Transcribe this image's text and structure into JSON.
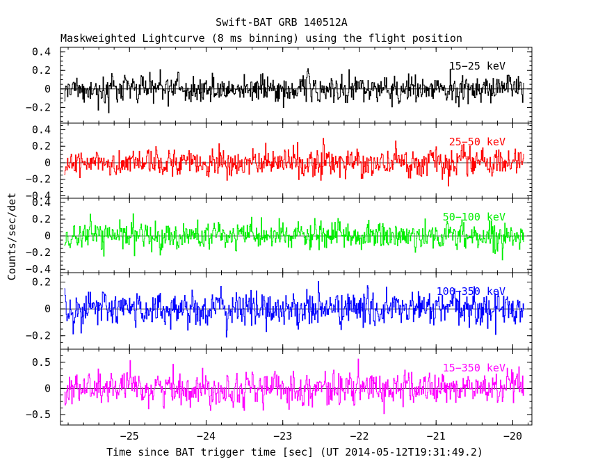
{
  "chart_data": {
    "type": "line",
    "title": "Swift-BAT GRB 140512A",
    "subtitle": "Maskweighted Lightcurve (8 ms binning) using the flight position",
    "xlabel": "Time since BAT trigger time [sec] (UT 2014-05-12T19:31:49.2)",
    "ylabel": "Counts/sec/det",
    "xlim": [
      -25.9,
      -19.75
    ],
    "data_xrange": [
      -25.85,
      -19.85
    ],
    "bin_width_sec": 0.008,
    "x_ticks": [
      -25,
      -24,
      -23,
      -22,
      -21,
      -20
    ],
    "x_tick_labels": [
      "−25",
      "−24",
      "−23",
      "−22",
      "−21",
      "−20"
    ],
    "panels": [
      {
        "name": "15-25 keV",
        "label": "15−25 keV",
        "color": "#000000",
        "ylim": [
          -0.37,
          0.45
        ],
        "y_ticks": [
          0.4,
          0.2,
          0,
          -0.2
        ],
        "y_tick_labels": [
          "0.4",
          "0.2",
          "0",
          "−0.2"
        ],
        "noise_sigma": 0.09,
        "max_amp": 0.35
      },
      {
        "name": "25-50 keV",
        "label": "25−50 keV",
        "color": "#ff0000",
        "ylim": [
          -0.43,
          0.48
        ],
        "y_ticks": [
          0.4,
          0.2,
          0,
          -0.2,
          -0.4
        ],
        "y_tick_labels": [
          "0.4",
          "0.2",
          "0",
          "−0.2",
          "−0.4"
        ],
        "noise_sigma": 0.1,
        "max_amp": 0.42
      },
      {
        "name": "50-100 keV",
        "label": "50−100 keV",
        "color": "#00ee00",
        "ylim": [
          -0.44,
          0.45
        ],
        "y_ticks": [
          0.4,
          0.2,
          0,
          -0.2,
          -0.4
        ],
        "y_tick_labels": [
          "0.4",
          "0.2",
          "0",
          "−0.2",
          "−0.4"
        ],
        "noise_sigma": 0.1,
        "max_amp": 0.4
      },
      {
        "name": "100-350 keV",
        "label": "100−350 keV",
        "color": "#0000ff",
        "ylim": [
          -0.3,
          0.27
        ],
        "y_ticks": [
          0.2,
          0,
          -0.2
        ],
        "y_tick_labels": [
          "0.2",
          "0",
          "−0.2"
        ],
        "noise_sigma": 0.08,
        "max_amp": 0.27
      },
      {
        "name": "15-350 keV",
        "label": "15−350 keV",
        "color": "#ff00ff",
        "ylim": [
          -0.7,
          0.75
        ],
        "y_ticks": [
          0.5,
          0,
          -0.5
        ],
        "y_tick_labels": [
          "0.5",
          "0",
          "−0.5"
        ],
        "noise_sigma": 0.19,
        "max_amp": 0.62
      }
    ]
  }
}
